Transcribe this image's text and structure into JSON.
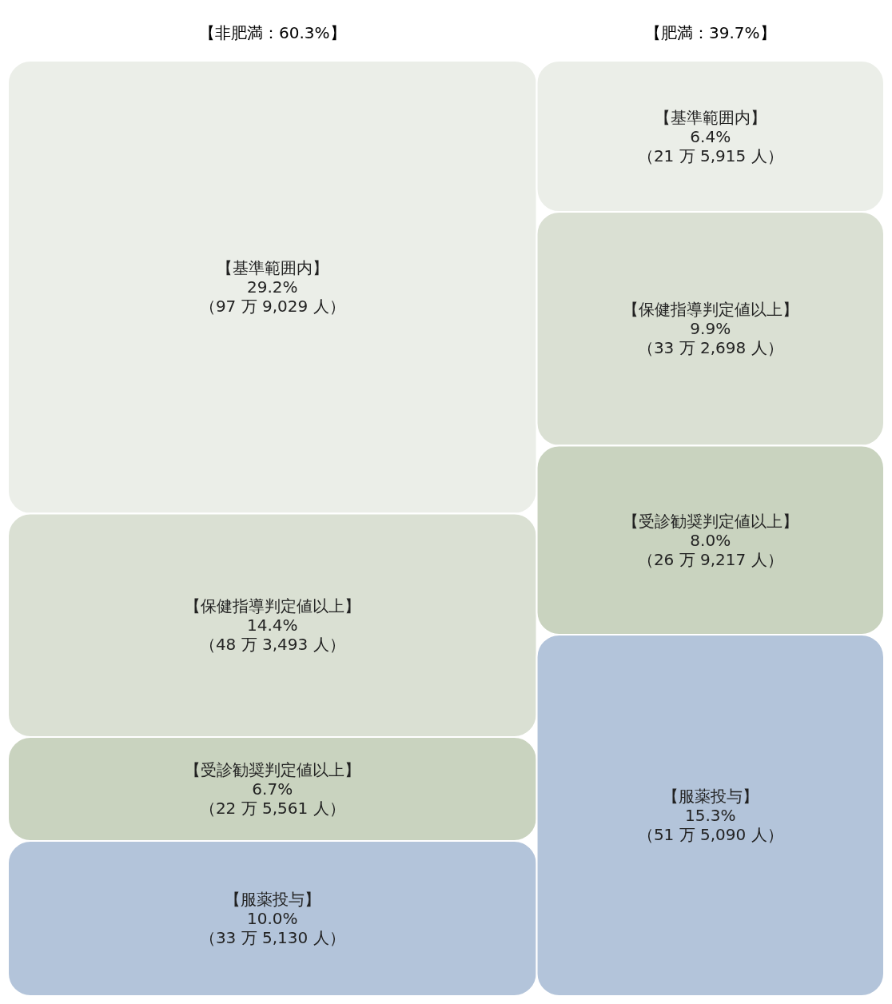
{
  "chart_data": {
    "type": "other",
    "categories": [
      "【非肥満：60.3%】",
      "【肥満：39.7%】"
    ],
    "series": [
      {
        "name": "【基準範囲内】",
        "color": "#ebeee8",
        "values": [
          29.2,
          6.4
        ],
        "value_labels": [
          "29.2%\n（97 万 9,029 人）",
          "6.4%\n（21 万 5,915 人）"
        ]
      },
      {
        "name": "【保健指導判定値以上】",
        "color": "#dae0d3",
        "values": [
          14.4,
          9.9
        ],
        "value_labels": [
          "14.4%\n（48 万 3,493 人）",
          "9.9%\n（33 万 2,698 人）"
        ]
      },
      {
        "name": "【受診勧奨判定値以上】",
        "color": "#c9d3bf",
        "values": [
          6.7,
          8.0
        ],
        "value_labels": [
          "6.7%\n（22 万 5,561 人）",
          "8.0%\n（26 万 9,217 人）"
        ]
      },
      {
        "name": "【服薬投与】",
        "color": "#b3c4da",
        "values": [
          10.0,
          15.3
        ],
        "value_labels": [
          "10.0%\n（33 万 5,130 人）",
          "15.3%\n（51 万 5,090 人）"
        ]
      }
    ]
  }
}
